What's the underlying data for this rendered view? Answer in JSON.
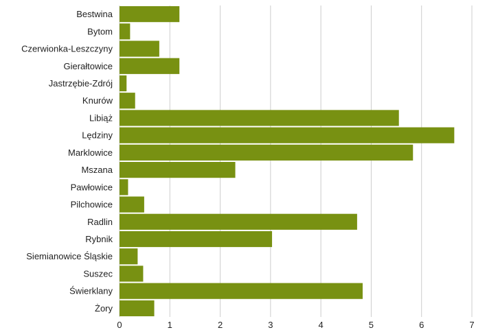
{
  "chart_data": {
    "type": "bar",
    "orientation": "horizontal",
    "title": "",
    "xlabel": "",
    "ylabel": "",
    "categories": [
      "Bestwina",
      "Bytom",
      "Czerwionka-Leszczyny",
      "Gierałtowice",
      "Jastrzębie-Zdrój",
      "Knurów",
      "Libiąż",
      "Lędziny",
      "Marklowice",
      "Mszana",
      "Pawłowice",
      "Pilchowice",
      "Radlin",
      "Rybnik",
      "Siemianowice Śląskie",
      "Suszec",
      "Świerklany",
      "Żory"
    ],
    "values": [
      1.19,
      0.21,
      0.79,
      1.19,
      0.14,
      0.31,
      5.55,
      6.65,
      5.83,
      2.3,
      0.17,
      0.49,
      4.72,
      3.03,
      0.36,
      0.47,
      4.83,
      0.69
    ],
    "xlim": [
      0,
      7
    ],
    "xticks": [
      "0",
      "1",
      "2",
      "3",
      "4",
      "5",
      "6",
      "7"
    ],
    "grid": true,
    "bar_color": "#789112",
    "grid_color": "#cccccc"
  }
}
